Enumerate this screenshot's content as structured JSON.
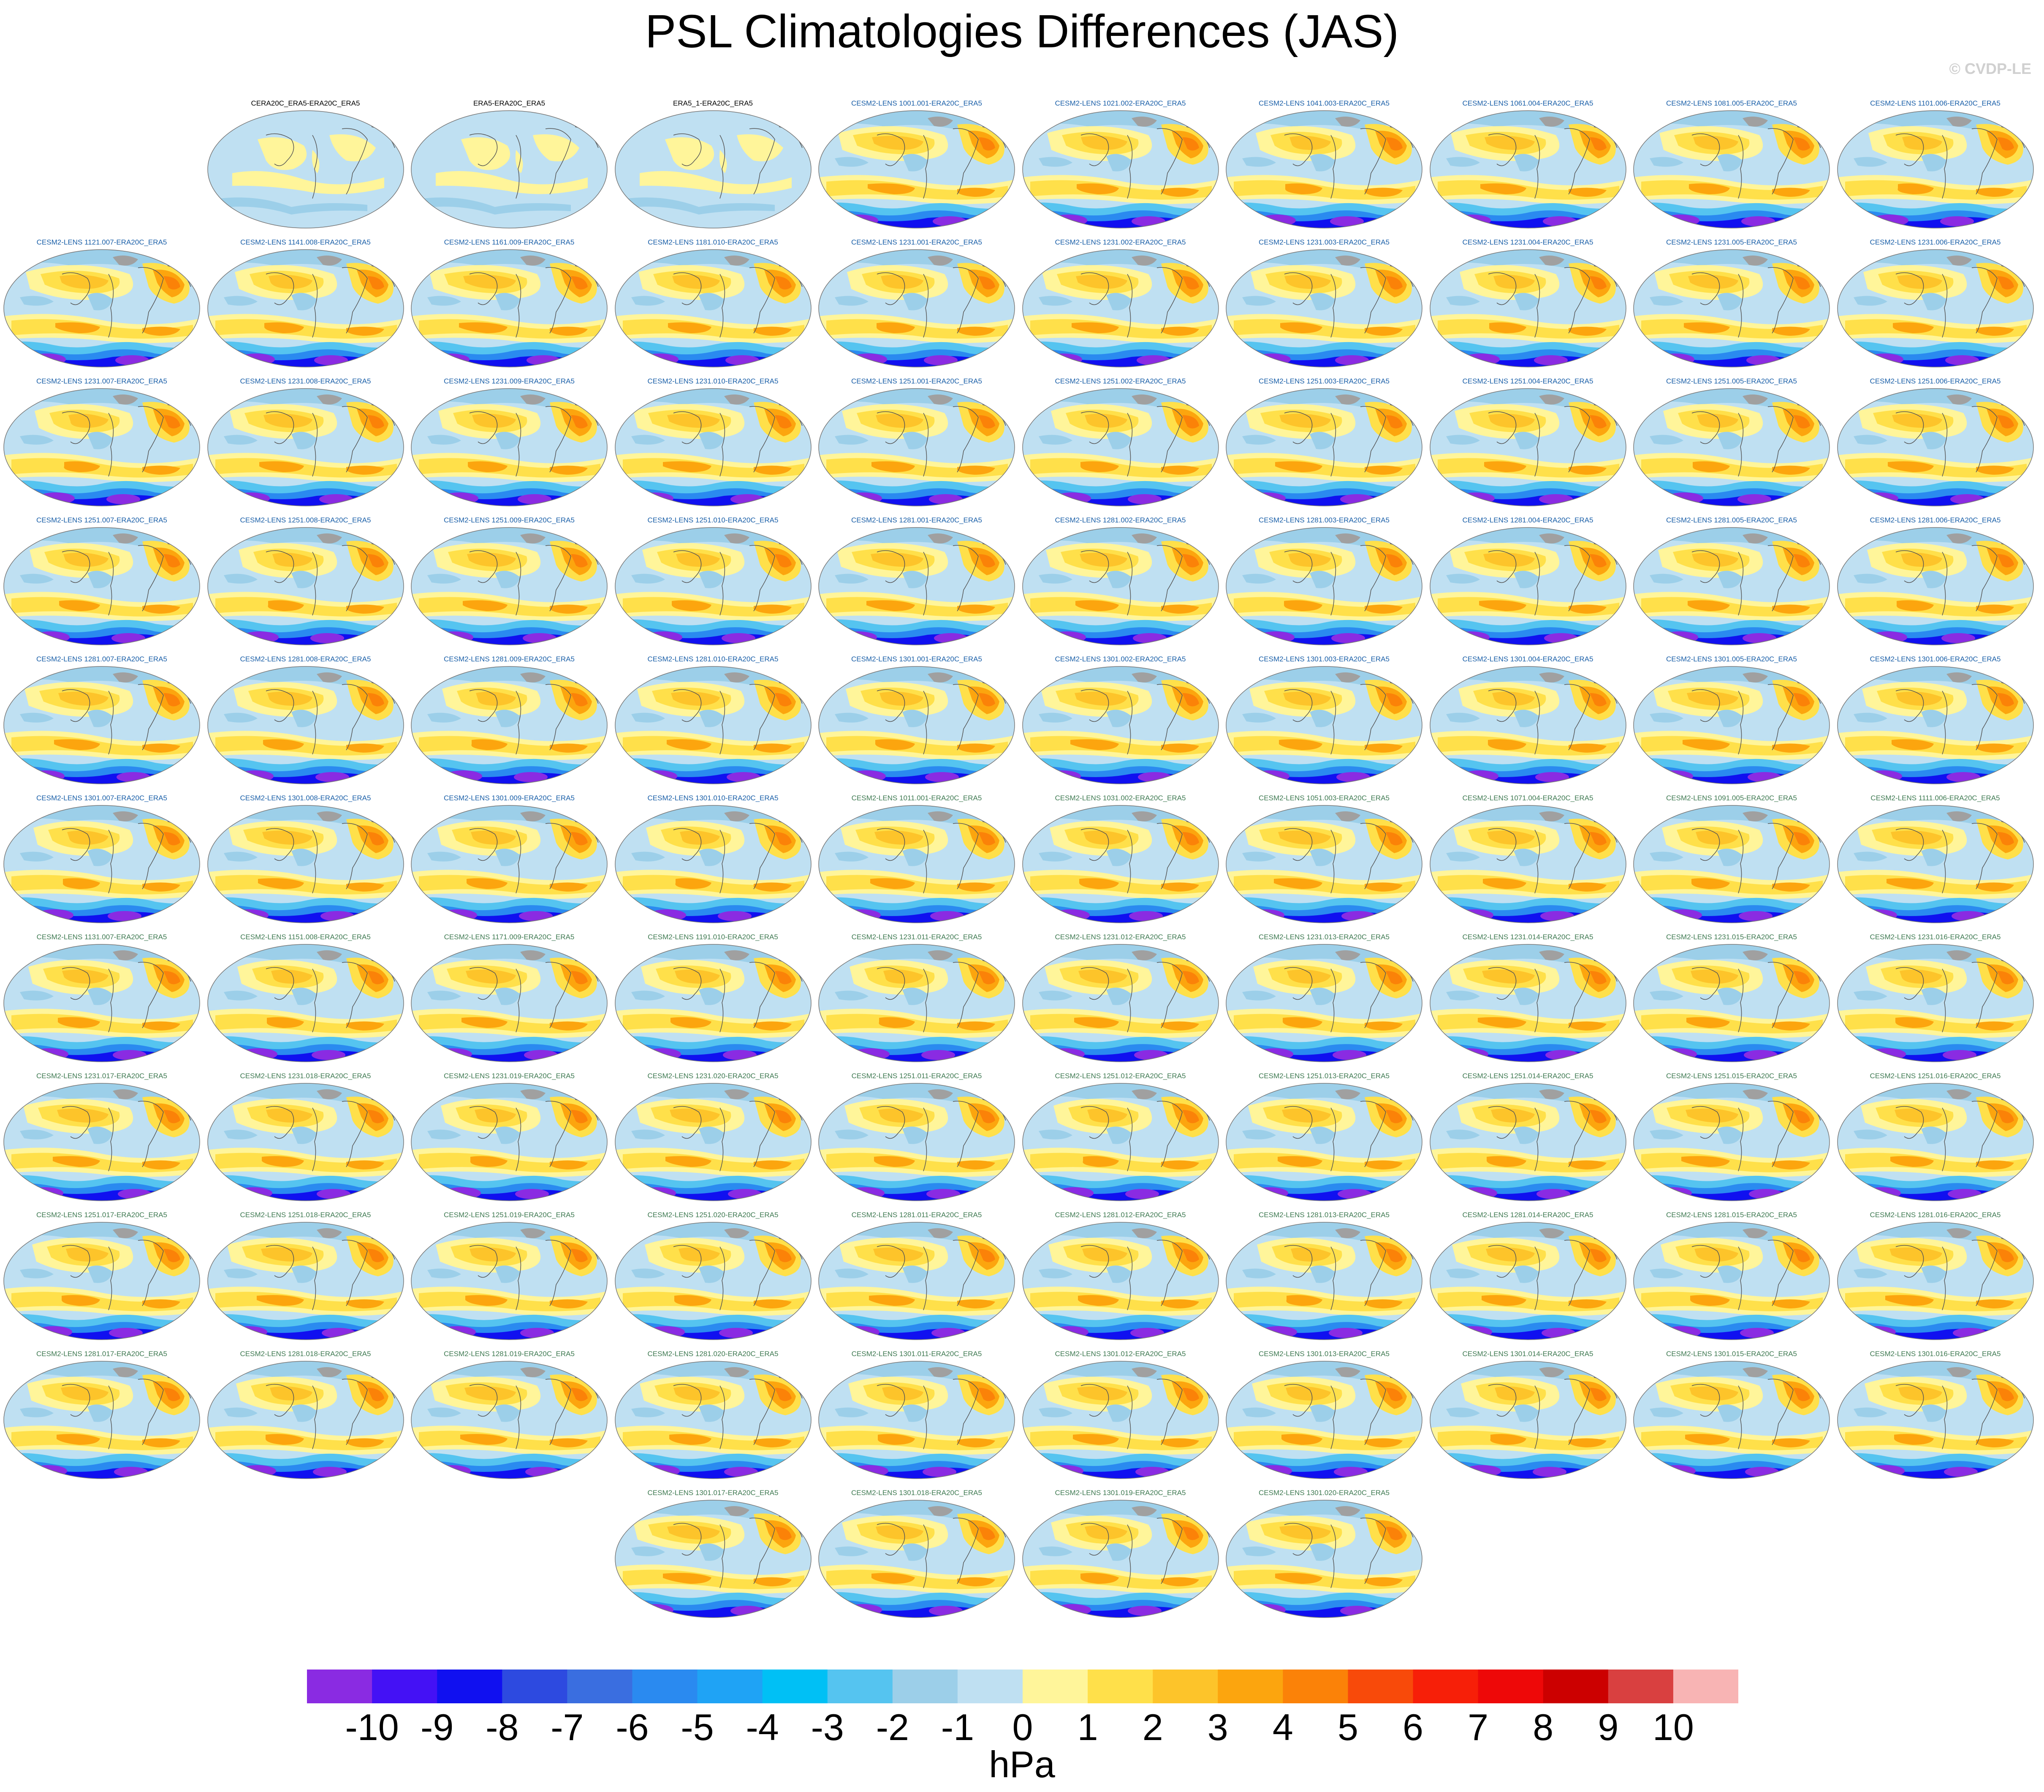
{
  "title": "PSL Climatologies Differences (JAS)",
  "watermark": "© CVDP-LE",
  "panel_groups": [
    {
      "title_color": "#000000",
      "titles": [
        "CERA20C_ERA5-ERA20C_ERA5",
        "ERA5-ERA20C_ERA5",
        "ERA5_1-ERA20C_ERA5"
      ]
    },
    {
      "title_color": "#1a5fa8",
      "titles": [
        "CESM2-LENS 1001.001-ERA20C_ERA5",
        "CESM2-LENS 1021.002-ERA20C_ERA5",
        "CESM2-LENS 1041.003-ERA20C_ERA5",
        "CESM2-LENS 1061.004-ERA20C_ERA5",
        "CESM2-LENS 1081.005-ERA20C_ERA5",
        "CESM2-LENS 1101.006-ERA20C_ERA5",
        "CESM2-LENS 1121.007-ERA20C_ERA5",
        "CESM2-LENS 1141.008-ERA20C_ERA5",
        "CESM2-LENS 1161.009-ERA20C_ERA5",
        "CESM2-LENS 1181.010-ERA20C_ERA5",
        "CESM2-LENS 1231.001-ERA20C_ERA5",
        "CESM2-LENS 1231.002-ERA20C_ERA5",
        "CESM2-LENS 1231.003-ERA20C_ERA5",
        "CESM2-LENS 1231.004-ERA20C_ERA5",
        "CESM2-LENS 1231.005-ERA20C_ERA5",
        "CESM2-LENS 1231.006-ERA20C_ERA5",
        "CESM2-LENS 1231.007-ERA20C_ERA5",
        "CESM2-LENS 1231.008-ERA20C_ERA5",
        "CESM2-LENS 1231.009-ERA20C_ERA5",
        "CESM2-LENS 1231.010-ERA20C_ERA5",
        "CESM2-LENS 1251.001-ERA20C_ERA5",
        "CESM2-LENS 1251.002-ERA20C_ERA5",
        "CESM2-LENS 1251.003-ERA20C_ERA5",
        "CESM2-LENS 1251.004-ERA20C_ERA5",
        "CESM2-LENS 1251.005-ERA20C_ERA5",
        "CESM2-LENS 1251.006-ERA20C_ERA5",
        "CESM2-LENS 1251.007-ERA20C_ERA5",
        "CESM2-LENS 1251.008-ERA20C_ERA5",
        "CESM2-LENS 1251.009-ERA20C_ERA5",
        "CESM2-LENS 1251.010-ERA20C_ERA5",
        "CESM2-LENS 1281.001-ERA20C_ERA5",
        "CESM2-LENS 1281.002-ERA20C_ERA5",
        "CESM2-LENS 1281.003-ERA20C_ERA5",
        "CESM2-LENS 1281.004-ERA20C_ERA5",
        "CESM2-LENS 1281.005-ERA20C_ERA5",
        "CESM2-LENS 1281.006-ERA20C_ERA5",
        "CESM2-LENS 1281.007-ERA20C_ERA5",
        "CESM2-LENS 1281.008-ERA20C_ERA5",
        "CESM2-LENS 1281.009-ERA20C_ERA5",
        "CESM2-LENS 1281.010-ERA20C_ERA5",
        "CESM2-LENS 1301.001-ERA20C_ERA5",
        "CESM2-LENS 1301.002-ERA20C_ERA5",
        "CESM2-LENS 1301.003-ERA20C_ERA5",
        "CESM2-LENS 1301.004-ERA20C_ERA5",
        "CESM2-LENS 1301.005-ERA20C_ERA5",
        "CESM2-LENS 1301.006-ERA20C_ERA5",
        "CESM2-LENS 1301.007-ERA20C_ERA5",
        "CESM2-LENS 1301.008-ERA20C_ERA5",
        "CESM2-LENS 1301.009-ERA20C_ERA5",
        "CESM2-LENS 1301.010-ERA20C_ERA5"
      ]
    },
    {
      "title_color": "#3f7a52",
      "titles": [
        "CESM2-LENS 1011.001-ERA20C_ERA5",
        "CESM2-LENS 1031.002-ERA20C_ERA5",
        "CESM2-LENS 1051.003-ERA20C_ERA5",
        "CESM2-LENS 1071.004-ERA20C_ERA5",
        "CESM2-LENS 1091.005-ERA20C_ERA5",
        "CESM2-LENS 1111.006-ERA20C_ERA5",
        "CESM2-LENS 1131.007-ERA20C_ERA5",
        "CESM2-LENS 1151.008-ERA20C_ERA5",
        "CESM2-LENS 1171.009-ERA20C_ERA5",
        "CESM2-LENS 1191.010-ERA20C_ERA5",
        "CESM2-LENS 1231.011-ERA20C_ERA5",
        "CESM2-LENS 1231.012-ERA20C_ERA5",
        "CESM2-LENS 1231.013-ERA20C_ERA5",
        "CESM2-LENS 1231.014-ERA20C_ERA5",
        "CESM2-LENS 1231.015-ERA20C_ERA5",
        "CESM2-LENS 1231.016-ERA20C_ERA5",
        "CESM2-LENS 1231.017-ERA20C_ERA5",
        "CESM2-LENS 1231.018-ERA20C_ERA5",
        "CESM2-LENS 1231.019-ERA20C_ERA5",
        "CESM2-LENS 1231.020-ERA20C_ERA5",
        "CESM2-LENS 1251.011-ERA20C_ERA5",
        "CESM2-LENS 1251.012-ERA20C_ERA5",
        "CESM2-LENS 1251.013-ERA20C_ERA5",
        "CESM2-LENS 1251.014-ERA20C_ERA5",
        "CESM2-LENS 1251.015-ERA20C_ERA5",
        "CESM2-LENS 1251.016-ERA20C_ERA5",
        "CESM2-LENS 1251.017-ERA20C_ERA5",
        "CESM2-LENS 1251.018-ERA20C_ERA5",
        "CESM2-LENS 1251.019-ERA20C_ERA5",
        "CESM2-LENS 1251.020-ERA20C_ERA5",
        "CESM2-LENS 1281.011-ERA20C_ERA5",
        "CESM2-LENS 1281.012-ERA20C_ERA5",
        "CESM2-LENS 1281.013-ERA20C_ERA5",
        "CESM2-LENS 1281.014-ERA20C_ERA5",
        "CESM2-LENS 1281.015-ERA20C_ERA5",
        "CESM2-LENS 1281.016-ERA20C_ERA5",
        "CESM2-LENS 1281.017-ERA20C_ERA5",
        "CESM2-LENS 1281.018-ERA20C_ERA5",
        "CESM2-LENS 1281.019-ERA20C_ERA5",
        "CESM2-LENS 1281.020-ERA20C_ERA5",
        "CESM2-LENS 1301.011-ERA20C_ERA5",
        "CESM2-LENS 1301.012-ERA20C_ERA5",
        "CESM2-LENS 1301.013-ERA20C_ERA5",
        "CESM2-LENS 1301.014-ERA20C_ERA5",
        "CESM2-LENS 1301.015-ERA20C_ERA5",
        "CESM2-LENS 1301.016-ERA20C_ERA5",
        "CESM2-LENS 1301.017-ERA20C_ERA5",
        "CESM2-LENS 1301.018-ERA20C_ERA5",
        "CESM2-LENS 1301.019-ERA20C_ERA5",
        "CESM2-LENS 1301.020-ERA20C_ERA5"
      ]
    }
  ],
  "colorbar": {
    "units": "hPa",
    "tick_labels": [
      "-10",
      "-9",
      "-8",
      "-7",
      "-6",
      "-5",
      "-4",
      "-3",
      "-2",
      "-1",
      "0",
      "1",
      "2",
      "3",
      "4",
      "5",
      "6",
      "7",
      "8",
      "9",
      "10"
    ],
    "colors": [
      "#8a2be2",
      "#4411f5",
      "#1010f0",
      "#2d4ae0",
      "#3a6ee0",
      "#2a8af0",
      "#1fa3f5",
      "#00c0f5",
      "#55c4f0",
      "#9ccfe9",
      "#bfe0f2",
      "#fff59a",
      "#ffe04a",
      "#fdc42a",
      "#fca50e",
      "#fb8208",
      "#f84a0a",
      "#f71f08",
      "#ee0808",
      "#cc0000",
      "#d94040",
      "#f8b4b4"
    ]
  }
}
